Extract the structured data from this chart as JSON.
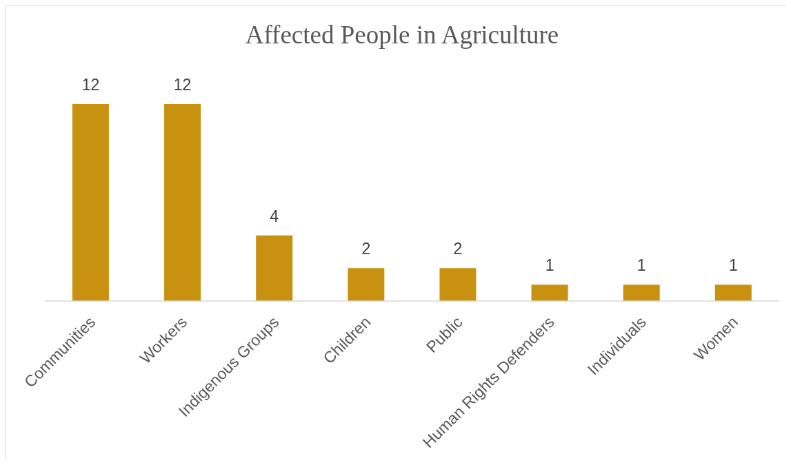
{
  "chart_data": {
    "type": "bar",
    "title": "Affected People in Agriculture",
    "categories": [
      "Communities",
      "Workers",
      "Indigenous Groups",
      "Children",
      "Public",
      "Human Rights Defenders",
      "Individuals",
      "Women"
    ],
    "values": [
      12,
      12,
      4,
      2,
      2,
      1,
      1,
      1
    ],
    "color": "#c8910f",
    "data_labels": true
  }
}
